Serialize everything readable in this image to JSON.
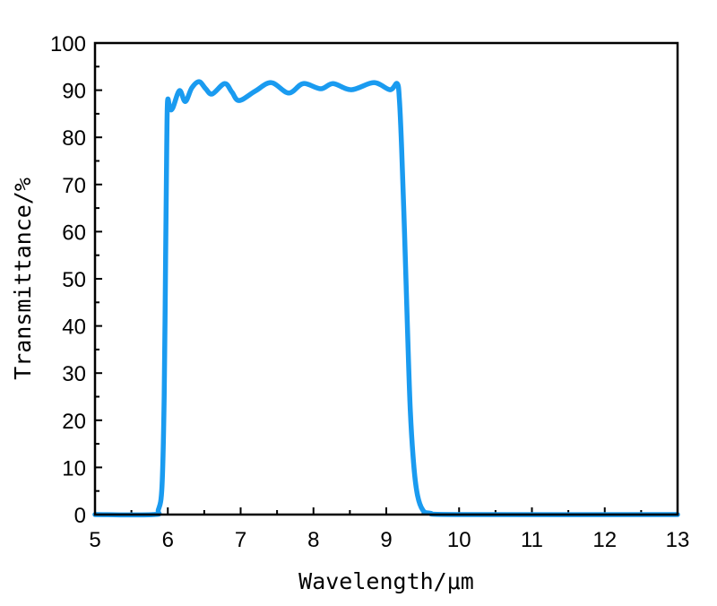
{
  "chart_data": {
    "type": "line",
    "title": "",
    "xlabel": "Wavelength/μm",
    "ylabel": "Transmittance/%",
    "xlim": [
      5,
      13
    ],
    "ylim": [
      0,
      100
    ],
    "xticks": [
      "5",
      "6",
      "7",
      "8",
      "9",
      "10",
      "11",
      "12",
      "13"
    ],
    "yticks": [
      "0",
      "10",
      "20",
      "30",
      "40",
      "50",
      "60",
      "70",
      "80",
      "90",
      "100"
    ],
    "grid": false,
    "legend": "none",
    "series": [
      {
        "name": "Transmittance",
        "color": "#1a9bf0",
        "x": [
          5.0,
          5.8,
          5.87,
          5.92,
          5.95,
          5.97,
          5.985,
          5.997,
          6.03,
          6.07,
          6.16,
          6.24,
          6.33,
          6.43,
          6.52,
          6.61,
          6.78,
          6.88,
          6.98,
          7.2,
          7.42,
          7.66,
          7.86,
          8.1,
          8.27,
          8.52,
          8.83,
          9.05,
          9.15,
          9.18,
          9.21,
          9.25,
          9.29,
          9.33,
          9.38,
          9.43,
          9.5,
          9.6,
          10.0,
          13.0
        ],
        "y": [
          0,
          0,
          1,
          6,
          25,
          55,
          78,
          87.8,
          86,
          86.3,
          89.9,
          87.6,
          90.5,
          91.8,
          90.3,
          89.2,
          91.4,
          89.6,
          87.8,
          89.8,
          91.6,
          89.4,
          91.4,
          90.3,
          91.4,
          90.1,
          91.6,
          90.1,
          91.4,
          88,
          78,
          60,
          40,
          22,
          10,
          4,
          1,
          0.3,
          0,
          0
        ]
      }
    ]
  }
}
